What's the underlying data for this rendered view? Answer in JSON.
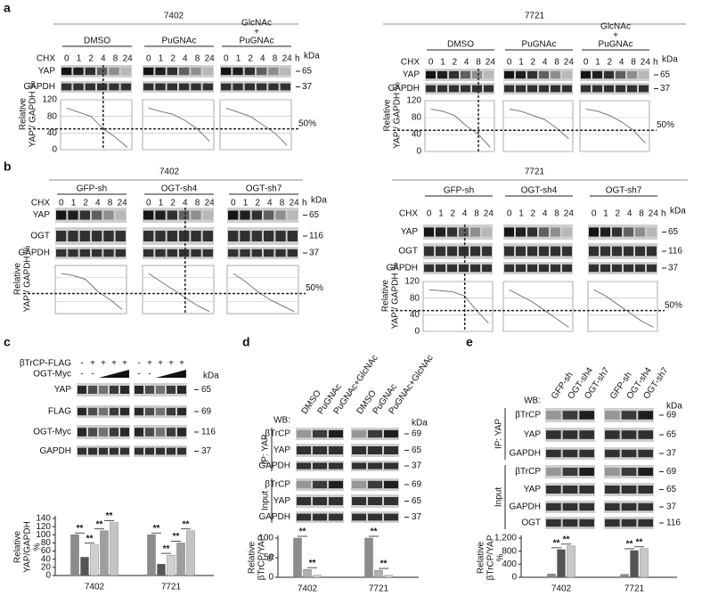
{
  "panel_a": {
    "label": "a",
    "groups": [
      {
        "cell_line": "7402",
        "chx": "CHX",
        "unit": "h",
        "kda": "kDa",
        "times": [
          "0",
          "1",
          "2",
          "4",
          "8",
          "24"
        ],
        "rows": [
          {
            "name": "YAP",
            "marker": "65"
          },
          {
            "name": "GAPDH",
            "marker": "37"
          }
        ],
        "y_label": [
          "Relative",
          "YAP / GAPDH %"
        ],
        "ylim": [
          0,
          120
        ],
        "yticks": [
          0,
          40,
          80,
          120
        ],
        "threshold": {
          "value": 50,
          "label": "50%"
        },
        "conditions": [
          {
            "name": [
              "DMSO"
            ],
            "values": [
              100,
              90,
              80,
              50,
              30,
              5
            ]
          },
          {
            "name": [
              "PuGNAc"
            ],
            "values": [
              100,
              92,
              85,
              70,
              50,
              20
            ]
          },
          {
            "name": [
              "GlcNAc",
              "+",
              "PuGNAc"
            ],
            "values": [
              100,
              90,
              80,
              60,
              40,
              10
            ]
          }
        ]
      },
      {
        "cell_line": "7721",
        "chx": "CHX",
        "unit": "h",
        "kda": "kDa",
        "times": [
          "0",
          "1",
          "2",
          "4",
          "8",
          "24"
        ],
        "rows": [
          {
            "name": "YAP",
            "marker": "65"
          },
          {
            "name": "GAPDH",
            "marker": "37"
          }
        ],
        "y_label": [
          "Relative",
          "YAP / GAPDH %"
        ],
        "ylim": [
          0,
          120
        ],
        "yticks": [
          0,
          40,
          80,
          120
        ],
        "threshold": {
          "value": 50,
          "label": "50%"
        },
        "conditions": [
          {
            "name": [
              "DMSO"
            ],
            "values": [
              100,
              95,
              85,
              60,
              40,
              10
            ]
          },
          {
            "name": [
              "PuGNAc"
            ],
            "values": [
              100,
              95,
              85,
              75,
              55,
              30
            ]
          },
          {
            "name": [
              "GlcNAc",
              "+",
              "PuGNAc"
            ],
            "values": [
              100,
              95,
              85,
              70,
              50,
              20
            ]
          }
        ]
      }
    ]
  },
  "panel_b": {
    "label": "b",
    "groups": [
      {
        "cell_line": "7402",
        "chx": "CHX",
        "unit": "h",
        "kda": "kDa",
        "times": [
          "0",
          "1",
          "2",
          "4",
          "8",
          "24"
        ],
        "rows": [
          {
            "name": "YAP",
            "marker": "65"
          },
          {
            "name": "OGT",
            "marker": "116"
          },
          {
            "name": "GAPDH",
            "marker": "37"
          }
        ],
        "y_label": [
          "Relative",
          "YAP / GAPDH %"
        ],
        "ylim": [
          0,
          120
        ],
        "threshold": {
          "value": 50,
          "label": "50%"
        },
        "conditions": [
          {
            "name": [
              "GFP-sh"
            ],
            "values": [
              100,
              95,
              85,
              55,
              35,
              10
            ]
          },
          {
            "name": [
              "OGT-sh4"
            ],
            "values": [
              100,
              80,
              60,
              40,
              20,
              5
            ]
          },
          {
            "name": [
              "OGT-sh7"
            ],
            "values": [
              100,
              80,
              55,
              35,
              20,
              5
            ]
          }
        ]
      },
      {
        "cell_line": "7721",
        "chx": "CHX",
        "unit": "h",
        "kda": "kDa",
        "times": [
          "0",
          "1",
          "2",
          "4",
          "8",
          "24"
        ],
        "rows": [
          {
            "name": "YAP",
            "marker": "65"
          },
          {
            "name": "OGT",
            "marker": "116"
          },
          {
            "name": "GAPDH",
            "marker": "37"
          }
        ],
        "y_label": [
          "Relative",
          "YAP / GAPDH %"
        ],
        "ylim": [
          0,
          120
        ],
        "yticks": [
          0,
          40,
          80,
          120
        ],
        "threshold": {
          "value": 50,
          "label": "50%"
        },
        "conditions": [
          {
            "name": [
              "GFP-sh"
            ],
            "values": [
              100,
              98,
              95,
              85,
              50,
              20
            ]
          },
          {
            "name": [
              "OGT-sh4"
            ],
            "values": [
              100,
              85,
              70,
              50,
              30,
              10
            ]
          },
          {
            "name": [
              "OGT-sh7"
            ],
            "values": [
              100,
              85,
              65,
              45,
              25,
              10
            ]
          }
        ]
      }
    ]
  },
  "panel_c": {
    "label": "c",
    "kda": "kDa",
    "treatments": [
      {
        "name": "βTrCP-FLAG",
        "signs": [
          "-",
          "+",
          "+",
          "+",
          "+",
          "-",
          "+",
          "+",
          "+",
          "+"
        ]
      },
      {
        "name": "OGT-Myc",
        "signs": [
          "-",
          "-",
          "-",
          "-"
        ]
      }
    ],
    "rows": [
      {
        "name": "YAP",
        "marker": "65"
      },
      {
        "name": "FLAG",
        "marker": "69"
      },
      {
        "name": "OGT-Myc",
        "marker": "116"
      },
      {
        "name": "GAPDH",
        "marker": "37"
      }
    ],
    "chart": {
      "type": "bar",
      "y_label": [
        "Relative",
        "YAP/GAPDH",
        "%"
      ],
      "categories": [
        "7402",
        "7721"
      ],
      "ylim": [
        0,
        140
      ],
      "yticks": [
        0,
        20,
        40,
        60,
        80,
        100,
        120,
        140
      ],
      "significance": "**",
      "series": [
        {
          "color": "#8c8c8c",
          "values": [
            100,
            100
          ]
        },
        {
          "color": "#555555",
          "values": [
            45,
            28
          ]
        },
        {
          "color": "#d0d0d0",
          "values": [
            75,
            50
          ]
        },
        {
          "color": "#9e9e9e",
          "values": [
            110,
            80
          ]
        },
        {
          "color": "#c4c4c4",
          "values": [
            130,
            110
          ]
        }
      ]
    }
  },
  "panel_d": {
    "label": "d",
    "kda": "kDa",
    "wb": "WB:",
    "lanes": [
      "DMSO",
      "PuGNAc",
      "PuGNAc+GlcNAc"
    ],
    "sections": [
      {
        "name": "IP: YAP",
        "rows": [
          {
            "name": "βTrCP",
            "marker": "69"
          },
          {
            "name": "YAP",
            "marker": "65"
          },
          {
            "name": "GAPDH",
            "marker": "37"
          }
        ]
      },
      {
        "name": "Input",
        "rows": [
          {
            "name": "βTrCP",
            "marker": "69"
          },
          {
            "name": "YAP",
            "marker": "65"
          },
          {
            "name": "GAPDH",
            "marker": "37"
          }
        ]
      }
    ],
    "chart": {
      "type": "bar",
      "y_label": [
        "Relative",
        "βTrCP/YAP",
        "%"
      ],
      "categories": [
        "7402",
        "7721"
      ],
      "ylim": [
        0,
        100
      ],
      "yticks": [
        0,
        50,
        100
      ],
      "significance": "**",
      "series": [
        {
          "color": "#8c8c8c",
          "values": [
            100,
            100
          ]
        },
        {
          "color": "#b0b0b0",
          "values": [
            20,
            18
          ]
        },
        {
          "color": "#d4d4d4",
          "values": [
            5,
            5
          ]
        }
      ]
    }
  },
  "panel_e": {
    "label": "e",
    "kda": "kDa",
    "wb": "WB:",
    "lanes": [
      "GFP-sh",
      "OGT-sh4",
      "OGT-sh7"
    ],
    "sections": [
      {
        "name": "IP: YAP",
        "rows": [
          {
            "name": "βTrCP",
            "marker": "69"
          },
          {
            "name": "YAP",
            "marker": "65"
          },
          {
            "name": "GAPDH",
            "marker": "37"
          }
        ]
      },
      {
        "name": "Input",
        "rows": [
          {
            "name": "βTrCP",
            "marker": "69"
          },
          {
            "name": "YAP",
            "marker": "65"
          },
          {
            "name": "GAPDH",
            "marker": "37"
          },
          {
            "name": "OGT",
            "marker": "116"
          }
        ]
      }
    ],
    "chart": {
      "type": "bar",
      "y_label": [
        "Relative",
        "βTrCP/YAP",
        "%"
      ],
      "categories": [
        "7402",
        "7721"
      ],
      "ylim": [
        0,
        1200
      ],
      "yticks": [
        0,
        400,
        800,
        {
          "value": 1200,
          "label": "1,200"
        }
      ],
      "significance": "**",
      "series": [
        {
          "color": "#8c8c8c",
          "values": [
            100,
            90
          ]
        },
        {
          "color": "#555555",
          "values": [
            850,
            820
          ]
        },
        {
          "color": "#c8c8c8",
          "values": [
            960,
            880
          ]
        }
      ]
    }
  }
}
